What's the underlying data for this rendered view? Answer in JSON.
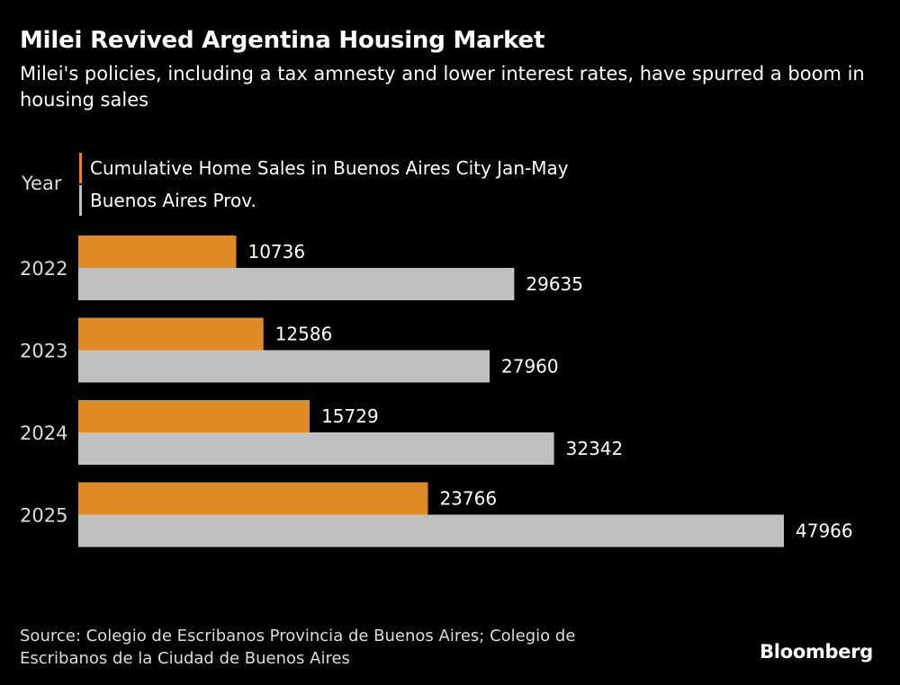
{
  "chart_data": {
    "type": "bar",
    "orientation": "horizontal",
    "title": "Milei Revived Argentina Housing Market",
    "subtitle": "Milei's policies, including a tax amnesty and lower interest rates, have spurred a boom in housing sales",
    "category_label": "Year",
    "categories": [
      "2022",
      "2023",
      "2024",
      "2025"
    ],
    "series": [
      {
        "name": "Cumulative Home Sales in Buenos Aires City Jan-May",
        "color": "#e08a25",
        "values": [
          10736,
          12586,
          15729,
          23766
        ],
        "labels": [
          "10736",
          "12586",
          "15729",
          "23766"
        ]
      },
      {
        "name": "Buenos Aires Prov.",
        "color": "#c0c0c0",
        "values": [
          29635,
          27960,
          32342,
          47966
        ],
        "labels": [
          "29635",
          "27960",
          "32342",
          "47966"
        ]
      }
    ],
    "xlim": [
      0,
      48000
    ],
    "grid": false,
    "legend_position": "top-left"
  },
  "footer": {
    "source": "Source: Colegio de Escribanos Provincia de Buenos Aires; Colegio de Escribanos de la Ciudad de Buenos Aires",
    "brand": "Bloomberg"
  }
}
